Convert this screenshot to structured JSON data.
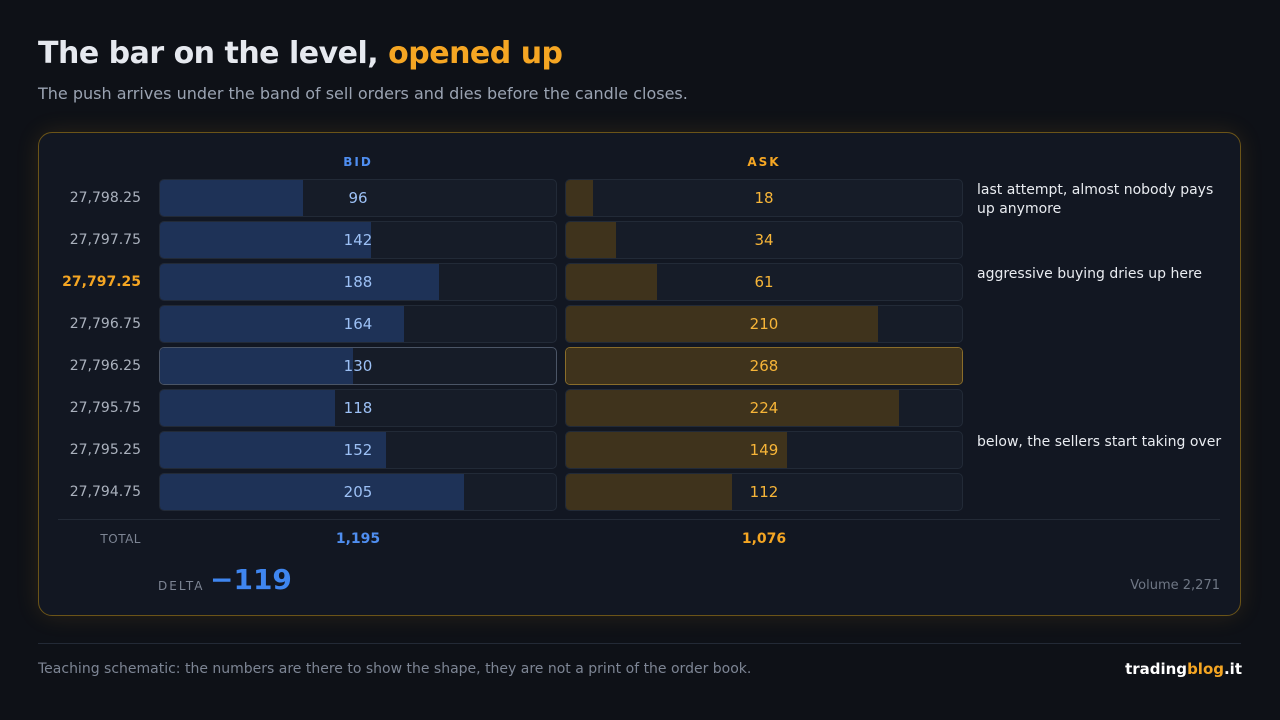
{
  "header": {
    "title": "The bar on the level,",
    "title_accent": "opened up",
    "subtitle": "The push arrives under the band of sell orders and dies before the candle closes."
  },
  "table": {
    "bid_label": "BID",
    "ask_label": "ASK",
    "rows": [
      {
        "price": "27,798.25",
        "bid": 96,
        "ask": 18,
        "note": "last attempt, almost nobody pays up anymore"
      },
      {
        "price": "27,797.75",
        "bid": 142,
        "ask": 34,
        "note": null
      },
      {
        "price": "27,797.25",
        "bid": 188,
        "ask": 61,
        "note": "aggressive buying dries up here"
      },
      {
        "price": "27,796.75",
        "bid": 164,
        "ask": 210,
        "note": null
      },
      {
        "price": "27,796.25",
        "bid": 130,
        "ask": 268,
        "note": null
      },
      {
        "price": "27,795.75",
        "bid": 118,
        "ask": 224,
        "note": null
      },
      {
        "price": "27,795.25",
        "bid": 152,
        "ask": 149,
        "note": "below, the sellers start taking over"
      },
      {
        "price": "27,794.75",
        "bid": 205,
        "ask": 112,
        "note": null
      }
    ],
    "total_label": "TOTAL",
    "bid_total": "1,195",
    "ask_total": "1,076",
    "delta_label": "DELTA",
    "delta": "−119",
    "volume": "Volume 2,271"
  },
  "footer": {
    "note": "Teaching schematic: the numbers are there to show the shape, they are not a print of the order book.",
    "brand": "trading",
    "brand_accent": "blog",
    "brand_suffix": ".it"
  }
}
